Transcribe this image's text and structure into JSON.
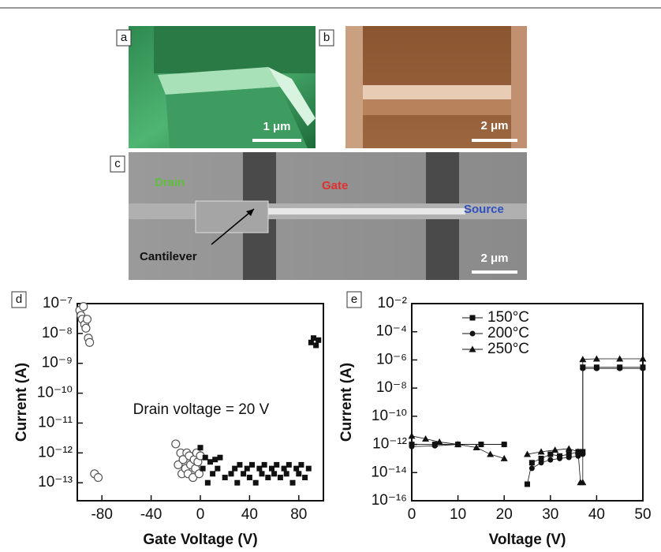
{
  "images": [
    {
      "label": "a",
      "scale_bar": "1 μm"
    },
    {
      "label": "b",
      "scale_bar": "2 μm"
    },
    {
      "label": "c",
      "scale_bar": "2 μm",
      "annotations": [
        "Drain",
        "Gate",
        "Source",
        "Cantilever"
      ]
    }
  ],
  "chart_data": [
    {
      "type": "scatter",
      "label": "d",
      "xlabel": "Gate Voltage (V)",
      "ylabel": "Current (A)",
      "annotation": "Drain voltage = 20 V",
      "yscale": "log",
      "xlim": [
        -100,
        100
      ],
      "xticks": [
        -80,
        -40,
        0,
        40,
        80
      ],
      "ylim": [
        2.5e-14,
        1e-07
      ],
      "yticks": [
        {
          "value": 1e-13,
          "label": "10⁻¹³"
        },
        {
          "value": 1e-12,
          "label": "10⁻¹²"
        },
        {
          "value": 1e-11,
          "label": "10⁻¹¹"
        },
        {
          "value": 1e-10,
          "label": "10⁻¹⁰"
        },
        {
          "value": 1e-09,
          "label": "10⁻⁹"
        },
        {
          "value": 1e-08,
          "label": "10⁻⁸"
        },
        {
          "value": 1e-07,
          "label": "10⁻⁷"
        }
      ],
      "series": [
        {
          "marker": "circle-open",
          "color": "#555555",
          "x": [
            -98,
            -97,
            -96,
            -95,
            -94,
            -93,
            -92,
            -91,
            -90,
            -86,
            -83,
            -20,
            -18,
            -16,
            -15,
            -14,
            -12,
            -11,
            -10,
            -9,
            -8,
            -6,
            -5,
            -4,
            -3,
            -2,
            -1,
            0
          ],
          "values": [
            6e-08,
            4e-08,
            3e-08,
            8e-08,
            2e-08,
            1.5e-08,
            3e-08,
            7e-09,
            5e-09,
            2e-13,
            1.5e-13,
            2e-12,
            4e-13,
            1e-12,
            2e-13,
            6e-13,
            3e-13,
            1e-12,
            2e-13,
            8e-13,
            4e-13,
            1.5e-13,
            6e-13,
            3e-13,
            1e-12,
            5e-13,
            2e-13,
            8e-13
          ]
        },
        {
          "marker": "square",
          "color": "#111111",
          "x": [
            0,
            2,
            4,
            6,
            8,
            10,
            12,
            14,
            16,
            20,
            25,
            28,
            30,
            32,
            35,
            38,
            40,
            42,
            45,
            48,
            50,
            52,
            55,
            58,
            60,
            62,
            65,
            68,
            70,
            72,
            75,
            78,
            80,
            82,
            85,
            88,
            90,
            92,
            94,
            96
          ],
          "values": [
            1.5e-12,
            3e-13,
            7e-13,
            1e-13,
            5e-13,
            2e-13,
            6e-13,
            3e-13,
            7e-13,
            1.5e-13,
            2e-13,
            3e-13,
            1e-13,
            4e-13,
            2e-13,
            3e-13,
            1.5e-13,
            4e-13,
            1e-13,
            3e-13,
            2e-13,
            4e-13,
            1.5e-13,
            3e-13,
            2e-13,
            4e-13,
            1.5e-13,
            3e-13,
            2e-13,
            4e-13,
            1e-13,
            3e-13,
            2e-13,
            4e-13,
            1.5e-13,
            3e-13,
            5e-09,
            7e-09,
            4e-09,
            6e-09
          ]
        }
      ]
    },
    {
      "type": "line",
      "label": "e",
      "xlabel": "Voltage (V)",
      "ylabel": "Current (A)",
      "yscale": "log",
      "legend": "upper center",
      "xlim": [
        0,
        50
      ],
      "xticks": [
        0,
        10,
        20,
        30,
        40,
        50
      ],
      "ylim": [
        1e-16,
        0.01
      ],
      "yticks": [
        {
          "value": 1e-16,
          "label": "10⁻¹⁶"
        },
        {
          "value": 1e-14,
          "label": "10⁻¹⁴"
        },
        {
          "value": 1e-12,
          "label": "10⁻¹²"
        },
        {
          "value": 1e-10,
          "label": "10⁻¹⁰"
        },
        {
          "value": 1e-08,
          "label": "10⁻⁸"
        },
        {
          "value": 1e-06,
          "label": "10⁻⁶"
        },
        {
          "value": 0.0001,
          "label": "10⁻⁴"
        },
        {
          "value": 0.01,
          "label": "10⁻²"
        }
      ],
      "series": [
        {
          "name": "150°C",
          "marker": "square",
          "color": "#111111",
          "x": [
            0,
            5,
            10,
            15,
            20,
            22,
            25,
            26,
            28,
            30,
            32,
            34,
            36,
            37,
            37,
            40,
            45,
            50
          ],
          "values": [
            1e-12,
            1e-12,
            1e-12,
            1e-12,
            1e-12,
            null,
            1.5e-15,
            5e-14,
            1e-13,
            2e-13,
            1.5e-13,
            2e-13,
            3e-13,
            3e-13,
            3e-07,
            3e-07,
            3e-07,
            3e-07
          ]
        },
        {
          "name": "200°C",
          "marker": "circle",
          "color": "#111111",
          "x": [
            0,
            5,
            10,
            15,
            20,
            22,
            26,
            28,
            30,
            32,
            34,
            36,
            37,
            37,
            40,
            45,
            50
          ],
          "values": [
            7e-13,
            8e-13,
            1e-12,
            1e-12,
            1e-12,
            null,
            2e-14,
            5e-14,
            8e-14,
            1e-13,
            1.2e-13,
            1.5e-13,
            2e-13,
            2.5e-07,
            2.5e-07,
            2.5e-07,
            2.5e-07
          ]
        },
        {
          "name": "250°C",
          "marker": "triangle",
          "color": "#111111",
          "x": [
            0,
            3,
            6,
            10,
            14,
            17,
            20,
            22,
            25,
            28,
            31,
            34,
            36,
            36.5,
            37,
            37,
            40,
            45,
            50
          ],
          "values": [
            4e-12,
            2.5e-12,
            1.5e-12,
            1e-12,
            6e-13,
            2e-13,
            1e-13,
            null,
            2e-13,
            3e-13,
            4e-13,
            5e-13,
            3e-13,
            2e-15,
            2e-15,
            1.1e-06,
            1.2e-06,
            1.2e-06,
            1.2e-06
          ]
        }
      ]
    }
  ]
}
